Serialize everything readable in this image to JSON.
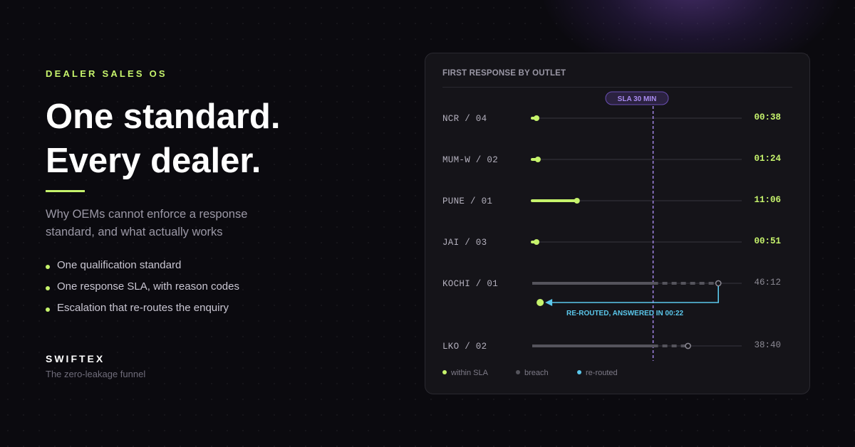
{
  "left": {
    "eyebrow": "DEALER SALES OS",
    "headline_line1": "One standard.",
    "headline_line2": "Every dealer.",
    "subtitle": "Why OEMs cannot enforce a response standard, and what actually works",
    "bullets": [
      "One qualification standard",
      "One response SLA, with reason codes",
      "Escalation that re-routes the enquiry"
    ],
    "brand": "SWIFTEX",
    "tagline": "The zero-leakage funnel"
  },
  "colors": {
    "within": "#c6f36c",
    "breach": "#55545c",
    "rerouted": "#5bc8ec",
    "sla": "#a98bf0",
    "accent": "#c6f36c"
  },
  "chart_data": {
    "type": "timeline",
    "title": "FIRST RESPONSE BY OUTLET",
    "sla_label": "SLA 30 MIN",
    "sla_minutes": 30,
    "x_max_minutes": 52,
    "rows": [
      {
        "label": "NCR / 04",
        "time": "00:38",
        "minutes": 0.63,
        "status": "within"
      },
      {
        "label": "MUM-W / 02",
        "time": "01:24",
        "minutes": 1.4,
        "status": "within"
      },
      {
        "label": "PUNE / 01",
        "time": "11:06",
        "minutes": 11.1,
        "status": "within"
      },
      {
        "label": "JAI / 03",
        "time": "00:51",
        "minutes": 0.85,
        "status": "within"
      },
      {
        "label": "KOCHI / 01",
        "time": "46:12",
        "minutes": 46.2,
        "status": "breach",
        "reroute": {
          "label": "RE-ROUTED, ANSWERED IN 00:22",
          "minutes": 0.37
        }
      },
      {
        "label": "LKO / 02",
        "time": "38:40",
        "minutes": 38.67,
        "status": "breach"
      }
    ],
    "legend": [
      {
        "label": "within SLA",
        "status": "within"
      },
      {
        "label": "breach",
        "status": "breach"
      },
      {
        "label": "re-routed",
        "status": "rerouted"
      }
    ]
  }
}
